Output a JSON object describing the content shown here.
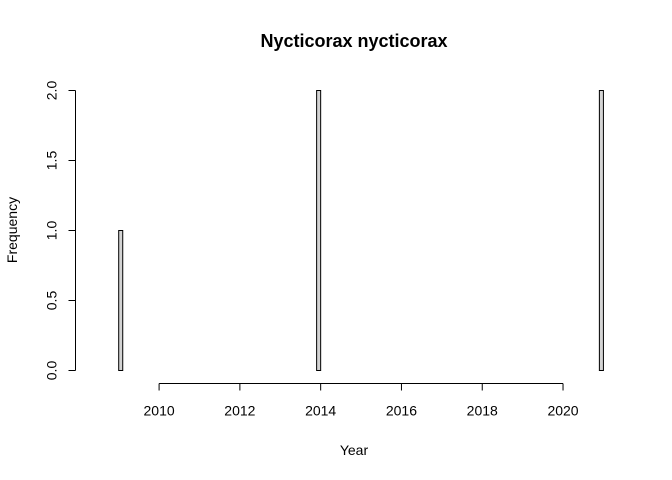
{
  "chart_data": {
    "type": "bar",
    "title": "Nycticorax nycticorax",
    "xlabel": "Year",
    "ylabel": "Frequency",
    "xlim": [
      2008.5,
      2021.2
    ],
    "ylim": [
      0,
      2
    ],
    "x_ticks": [
      2010,
      2012,
      2014,
      2016,
      2018,
      2020
    ],
    "x_tick_labels": [
      "2010",
      "2012",
      "2014",
      "2016",
      "2018",
      "2020"
    ],
    "y_ticks": [
      0,
      0.5,
      1,
      1.5,
      2
    ],
    "y_tick_labels": [
      "0.0",
      "0.5",
      "1.0",
      "1.5",
      "2.0"
    ],
    "bins": {
      "start": 2009,
      "end": 2021,
      "width": 0.1
    },
    "series": [
      {
        "points": [
          {
            "x": 2009.0,
            "count": 1
          },
          {
            "x": 2013.9,
            "count": 2
          },
          {
            "x": 2020.9,
            "count": 2
          }
        ]
      }
    ],
    "grid": false,
    "bar_fill": "#d3d3d3",
    "bar_stroke": "#000000"
  }
}
